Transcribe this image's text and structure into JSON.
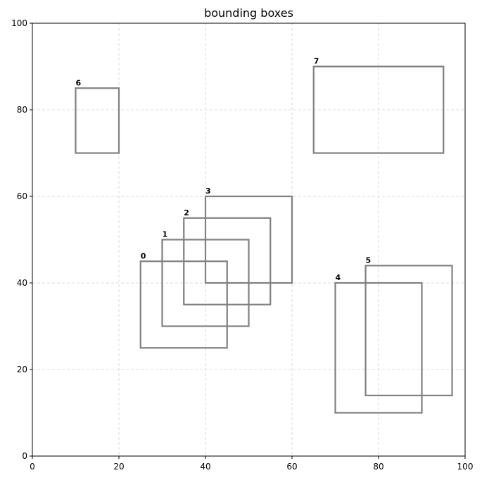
{
  "chart_data": {
    "type": "rectangles",
    "title": "bounding boxes",
    "xlabel": "",
    "ylabel": "",
    "xlim": [
      0,
      100
    ],
    "ylim": [
      0,
      100
    ],
    "xticks": [
      "0",
      "20",
      "40",
      "60",
      "80",
      "100"
    ],
    "yticks": [
      "0",
      "20",
      "40",
      "60",
      "80",
      "100"
    ],
    "grid": true,
    "box_color": "#808080",
    "boxes": [
      {
        "label": "0",
        "x1": 25,
        "y1": 25,
        "x2": 45,
        "y2": 45
      },
      {
        "label": "1",
        "x1": 30,
        "y1": 30,
        "x2": 50,
        "y2": 50
      },
      {
        "label": "2",
        "x1": 35,
        "y1": 35,
        "x2": 55,
        "y2": 55
      },
      {
        "label": "3",
        "x1": 40,
        "y1": 40,
        "x2": 60,
        "y2": 60
      },
      {
        "label": "4",
        "x1": 70,
        "y1": 10,
        "x2": 90,
        "y2": 40
      },
      {
        "label": "5",
        "x1": 77,
        "y1": 14,
        "x2": 97,
        "y2": 44
      },
      {
        "label": "6",
        "x1": 10,
        "y1": 70,
        "x2": 20,
        "y2": 85
      },
      {
        "label": "7",
        "x1": 65,
        "y1": 70,
        "x2": 95,
        "y2": 90
      }
    ]
  }
}
